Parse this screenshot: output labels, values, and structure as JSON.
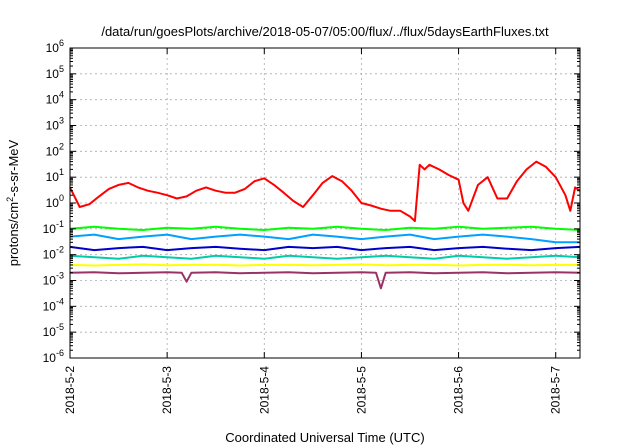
{
  "chart_data": {
    "type": "line",
    "title": "/data/run/goesPlots/archive/2018-05-07/05:00/flux/../flux/5daysEarthFluxes.txt",
    "xlabel": "Coordinated Universal Time (UTC)",
    "ylabel": {
      "prefix": "protons/cm",
      "sup": "2",
      "suffix": "-s-sr-MeV"
    },
    "yscale": "log",
    "ylim": [
      1e-06,
      1000000.0
    ],
    "xlim": [
      0,
      5.25
    ],
    "x_ticks": [
      {
        "x": 0,
        "label": "2018-5-2"
      },
      {
        "x": 1,
        "label": "2018-5-3"
      },
      {
        "x": 2,
        "label": "2018-5-4"
      },
      {
        "x": 3,
        "label": "2018-5-5"
      },
      {
        "x": 4,
        "label": "2018-5-6"
      },
      {
        "x": 5,
        "label": "2018-5-7"
      }
    ],
    "y_ticks": [
      {
        "exp": -6,
        "label_base": "10",
        "label_exp": "-6"
      },
      {
        "exp": -5,
        "label_base": "10",
        "label_exp": "-5"
      },
      {
        "exp": -4,
        "label_base": "10",
        "label_exp": "-4"
      },
      {
        "exp": -3,
        "label_base": "10",
        "label_exp": "-3"
      },
      {
        "exp": -2,
        "label_base": "10",
        "label_exp": "-2"
      },
      {
        "exp": -1,
        "label_base": "10",
        "label_exp": "-1"
      },
      {
        "exp": 0,
        "label_base": "10",
        "label_exp": "0"
      },
      {
        "exp": 1,
        "label_base": "10",
        "label_exp": "1"
      },
      {
        "exp": 2,
        "label_base": "10",
        "label_exp": "2"
      },
      {
        "exp": 3,
        "label_base": "10",
        "label_exp": "3"
      },
      {
        "exp": 4,
        "label_base": "10",
        "label_exp": "4"
      },
      {
        "exp": 5,
        "label_base": "10",
        "label_exp": "5"
      },
      {
        "exp": 6,
        "label_base": "10",
        "label_exp": "6"
      }
    ],
    "grid": true,
    "series": [
      {
        "color": "#ff0000",
        "x": [
          0,
          0.1,
          0.2,
          0.3,
          0.4,
          0.5,
          0.6,
          0.7,
          0.8,
          0.9,
          1.0,
          1.1,
          1.2,
          1.3,
          1.4,
          1.5,
          1.6,
          1.7,
          1.8,
          1.9,
          2.0,
          2.1,
          2.2,
          2.3,
          2.4,
          2.5,
          2.6,
          2.7,
          2.8,
          2.9,
          3.0,
          3.1,
          3.2,
          3.3,
          3.4,
          3.5,
          3.55,
          3.6,
          3.65,
          3.7,
          3.8,
          3.9,
          4.0,
          4.05,
          4.1,
          4.2,
          4.3,
          4.4,
          4.5,
          4.6,
          4.7,
          4.8,
          4.9,
          5.0,
          5.1,
          5.15,
          5.2,
          5.25
        ],
        "y": [
          4,
          0.7,
          0.9,
          1.8,
          3.5,
          5,
          6,
          4,
          3,
          2.5,
          2,
          1.5,
          1.8,
          3,
          4,
          3,
          2.5,
          2.5,
          3.5,
          7,
          9,
          5,
          2.5,
          1.2,
          0.7,
          2,
          6,
          11,
          7,
          3,
          1,
          0.8,
          0.6,
          0.5,
          0.5,
          0.3,
          0.2,
          30,
          20,
          30,
          20,
          12,
          8,
          1,
          0.5,
          5,
          10,
          1.5,
          1.5,
          7,
          20,
          40,
          25,
          10,
          2,
          0.5,
          4,
          3
        ]
      },
      {
        "color": "#00ff00",
        "x": [
          0,
          0.25,
          0.5,
          0.75,
          1.0,
          1.25,
          1.5,
          1.75,
          2.0,
          2.25,
          2.5,
          2.75,
          3.0,
          3.25,
          3.5,
          3.75,
          4.0,
          4.25,
          4.5,
          4.75,
          5.0,
          5.25
        ],
        "y": [
          0.1,
          0.12,
          0.1,
          0.09,
          0.11,
          0.1,
          0.12,
          0.1,
          0.09,
          0.11,
          0.1,
          0.12,
          0.1,
          0.09,
          0.11,
          0.1,
          0.12,
          0.1,
          0.11,
          0.12,
          0.1,
          0.09
        ]
      },
      {
        "color": "#00a0ff",
        "x": [
          0,
          0.25,
          0.5,
          0.75,
          1.0,
          1.25,
          1.5,
          1.75,
          2.0,
          2.25,
          2.5,
          2.75,
          3.0,
          3.25,
          3.5,
          3.75,
          4.0,
          4.25,
          4.5,
          4.75,
          5.0,
          5.25
        ],
        "y": [
          0.05,
          0.06,
          0.04,
          0.05,
          0.06,
          0.04,
          0.05,
          0.06,
          0.05,
          0.04,
          0.06,
          0.05,
          0.04,
          0.05,
          0.06,
          0.04,
          0.05,
          0.06,
          0.05,
          0.04,
          0.03,
          0.03
        ]
      },
      {
        "color": "#0000cc",
        "x": [
          0,
          0.25,
          0.5,
          0.75,
          1.0,
          1.25,
          1.5,
          1.75,
          2.0,
          2.25,
          2.5,
          2.75,
          3.0,
          3.25,
          3.5,
          3.75,
          4.0,
          4.25,
          4.5,
          4.75,
          5.0,
          5.25
        ],
        "y": [
          0.02,
          0.015,
          0.018,
          0.02,
          0.015,
          0.018,
          0.02,
          0.017,
          0.015,
          0.02,
          0.018,
          0.02,
          0.015,
          0.018,
          0.02,
          0.015,
          0.018,
          0.02,
          0.017,
          0.015,
          0.018,
          0.02
        ]
      },
      {
        "color": "#00ccaa",
        "x": [
          0,
          0.25,
          0.5,
          0.75,
          1.0,
          1.25,
          1.5,
          1.75,
          2.0,
          2.25,
          2.5,
          2.75,
          3.0,
          3.25,
          3.5,
          3.75,
          4.0,
          4.25,
          4.5,
          4.75,
          5.0,
          5.25
        ],
        "y": [
          0.009,
          0.008,
          0.007,
          0.009,
          0.008,
          0.007,
          0.009,
          0.008,
          0.007,
          0.009,
          0.008,
          0.007,
          0.008,
          0.009,
          0.008,
          0.007,
          0.009,
          0.008,
          0.007,
          0.008,
          0.009,
          0.008
        ]
      },
      {
        "color": "#ffff00",
        "x": [
          0,
          0.25,
          0.5,
          0.75,
          1.0,
          1.25,
          1.5,
          1.75,
          2.0,
          2.25,
          2.5,
          2.75,
          3.0,
          3.25,
          3.5,
          3.75,
          4.0,
          4.25,
          4.5,
          4.75,
          5.0,
          5.25
        ],
        "y": [
          0.004,
          0.0038,
          0.004,
          0.0042,
          0.0039,
          0.004,
          0.0041,
          0.0038,
          0.004,
          0.0041,
          0.0039,
          0.004,
          0.0042,
          0.0039,
          0.004,
          0.0041,
          0.0038,
          0.004,
          0.0041,
          0.0039,
          0.004,
          0.004
        ]
      },
      {
        "color": "#993366",
        "x": [
          0,
          0.25,
          0.5,
          0.75,
          1.0,
          1.15,
          1.2,
          1.25,
          1.5,
          1.75,
          2.0,
          2.25,
          2.5,
          2.75,
          3.0,
          3.15,
          3.2,
          3.25,
          3.5,
          3.75,
          4.0,
          4.25,
          4.5,
          4.75,
          5.0,
          5.25
        ],
        "y": [
          0.002,
          0.0021,
          0.0019,
          0.002,
          0.0021,
          0.002,
          0.0009,
          0.002,
          0.0021,
          0.0019,
          0.002,
          0.0021,
          0.0019,
          0.002,
          0.0021,
          0.002,
          0.0005,
          0.002,
          0.0021,
          0.0019,
          0.002,
          0.0021,
          0.0019,
          0.002,
          0.0021,
          0.002
        ]
      }
    ]
  }
}
